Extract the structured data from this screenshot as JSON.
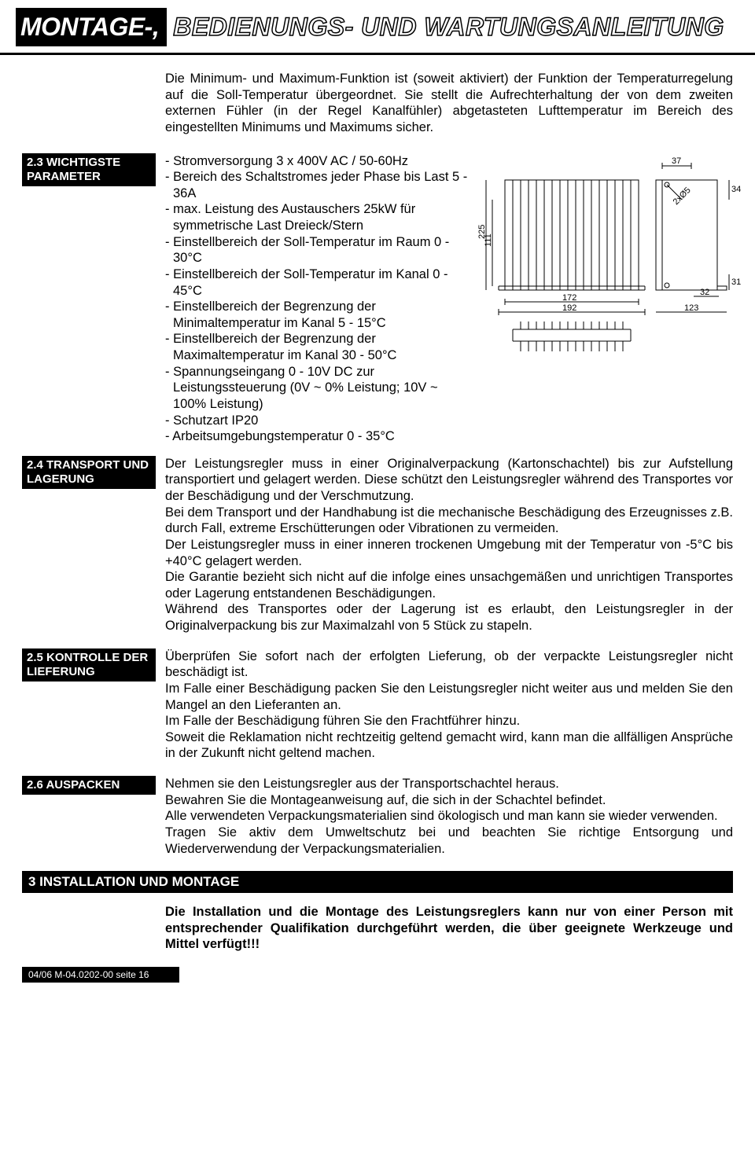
{
  "header": {
    "black": "MONTAGE-,",
    "outline": "BEDIENUNGS- UND WARTUNGSANLEITUNG"
  },
  "intro": "Die Minimum- und Maximum-Funktion ist (soweit aktiviert) der Funktion der Temperaturregelung auf die Soll-Temperatur übergeordnet. Sie stellt die Aufrechterhaltung der von dem zweiten externen Fühler (in der Regel Kanalfühler) abgetasteten Lufttemperatur im Bereich des eingestellten Minimums und Maximums sicher.",
  "s23": {
    "label": "2.3 WICHTIGSTE PARAMETER",
    "items": [
      "- Stromversorgung 3 x 400V AC / 50-60Hz",
      "- Bereich des  Schaltstromes jeder Phase bis Last 5 - 36A",
      "- max. Leistung des Austauschers 25kW für symmetrische Last Dreieck/Stern",
      "- Einstellbereich der Soll-Temperatur im Raum  0 - 30°C",
      "- Einstellbereich der Soll-Temperatur im Kanal  0 - 45°C",
      "- Einstellbereich der Begrenzung der Minimaltemperatur im Kanal 5 - 15°C",
      "- Einstellbereich der Begrenzung der Maximaltemperatur im Kanal 30 - 50°C",
      "- Spannungseingang 0 - 10V DC zur Leistungssteuerung (0V ~ 0% Leistung; 10V ~ 100% Leistung)",
      "- Schutzart IP20",
      "- Arbeitsumgebungstemperatur 0 - 35°C"
    ]
  },
  "diagram": {
    "dims": {
      "w37": "37",
      "w34": "34",
      "w31": "31",
      "w32": "32",
      "w172": "172",
      "w192": "192",
      "w123": "123",
      "h111": "111",
      "h225": "225",
      "diag": "2xØ5"
    },
    "colors": {
      "line": "#000000",
      "fill": "#ffffff"
    }
  },
  "s24": {
    "label": "2.4 TRANSPORT UND LAGERUNG",
    "text": "Der Leistungsregler muss in einer Originalverpackung (Kartonschachtel) bis zur Aufstellung transportiert und gelagert werden. Diese schützt den Leistungsregler während des Transportes vor der Beschädigung und der Verschmutzung.\nBei dem Transport und der Handhabung ist die mechanische Beschädigung des Erzeugnisses z.B. durch Fall, extreme Erschütterungen oder Vibrationen zu vermeiden.\nDer Leistungsregler muss in einer inneren trockenen Umgebung mit der Temperatur von  -5°C bis +40°C gelagert werden.\nDie Garantie bezieht sich nicht auf die infolge eines unsachgemäßen und unrichtigen Transportes oder Lagerung entstandenen Beschädigungen.\nWährend des Transportes oder der Lagerung ist es erlaubt, den Leistungsregler in der Originalverpackung bis zur Maximalzahl von 5 Stück zu stapeln."
  },
  "s25": {
    "label": "2.5 KONTROLLE DER LIEFERUNG",
    "text": "Überprüfen Sie sofort nach der erfolgten Lieferung, ob der verpackte Leistungsregler nicht beschädigt ist.\nIm Falle einer Beschädigung packen Sie den Leistungsregler nicht weiter aus und melden Sie den Mangel an den Lieferanten an.\nIm Falle der Beschädigung führen Sie den Frachtführer hinzu.\nSoweit die Reklamation nicht rechtzeitig geltend gemacht wird, kann man die allfälligen Ansprüche in der Zukunft nicht geltend machen."
  },
  "s26": {
    "label": "2.6 AUSPACKEN",
    "text": "Nehmen sie den Leistungsregler aus der Transportschachtel heraus.\nBewahren Sie die Montageanweisung auf, die sich in der Schachtel befindet.\nAlle verwendeten Verpackungsmaterialien sind ökologisch und man kann sie wieder verwenden.\nTragen Sie aktiv dem Umweltschutz bei und beachten Sie richtige Entsorgung und Wiederverwendung der Verpackungsmaterialien."
  },
  "s3": {
    "label": "3  INSTALLATION UND MONTAGE",
    "text": "Die Installation und die Montage des Leistungsreglers kann nur von einer Person mit entsprechender Qualifikation durchgeführt werden, die über geeignete Werkzeuge und Mittel verfügt!!!"
  },
  "footer": "04/06    M-04.0202-00    seite 16"
}
